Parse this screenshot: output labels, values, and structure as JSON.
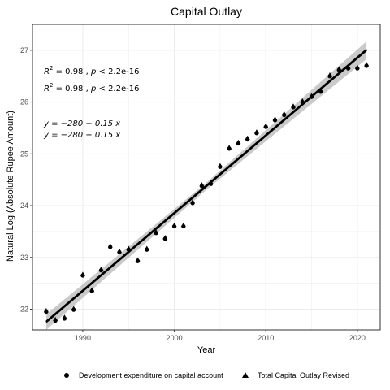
{
  "chart_data": {
    "type": "scatter",
    "title": "Capital Outlay",
    "xlabel": "Year",
    "ylabel": "Natural Log (Absolute Rupee Amount)",
    "xlim": [
      1984.5,
      2022.5
    ],
    "ylim": [
      21.6,
      27.5
    ],
    "x_ticks": [
      1990,
      2000,
      2010,
      2020
    ],
    "y_ticks": [
      22,
      23,
      24,
      25,
      26,
      27
    ],
    "grid": true,
    "legend_position": "bottom",
    "colors": {
      "points": "#000000",
      "fit_line": "#000000",
      "confidence_band": "#bdbdbd",
      "grid": "#ebebeb"
    },
    "annotations": [
      {
        "prefix": "R",
        "sup": "2",
        "rest": " = 0.98 , ",
        "italic": "p",
        "tail": " < 2.2e-16"
      },
      {
        "prefix": "R",
        "sup": "2",
        "rest": " = 0.98 , ",
        "italic": "p",
        "tail": " < 2.2e-16"
      },
      {
        "text": "y = −280 + 0.15 x"
      },
      {
        "text": "y = −280 + 0.15 x"
      }
    ],
    "series": [
      {
        "name": "Development  expenditure on  capital account",
        "marker": "circle",
        "x": [
          1986,
          1987,
          1988,
          1989,
          1990,
          1991,
          1992,
          1993,
          1994,
          1995,
          1996,
          1997,
          1998,
          1999,
          2000,
          2001,
          2002,
          2003,
          2004,
          2005,
          2006,
          2007,
          2008,
          2009,
          2010,
          2011,
          2012,
          2013,
          2014,
          2015,
          2016,
          2017,
          2018,
          2019,
          2020,
          2021
        ],
        "y": [
          21.95,
          21.78,
          21.82,
          21.99,
          22.65,
          22.35,
          22.75,
          23.2,
          23.1,
          23.15,
          22.93,
          23.15,
          23.47,
          23.36,
          23.6,
          23.6,
          24.05,
          24.38,
          24.42,
          24.75,
          25.1,
          25.2,
          25.28,
          25.4,
          25.52,
          25.65,
          25.75,
          25.9,
          26.0,
          26.1,
          26.2,
          26.5,
          26.62,
          26.65,
          26.65,
          26.7
        ]
      },
      {
        "name": "Total Capital Outlay Revised",
        "marker": "triangle",
        "x": [
          1986,
          1987,
          1988,
          1989,
          1990,
          1991,
          1992,
          1993,
          1994,
          1995,
          1996,
          1997,
          1998,
          1999,
          2000,
          2001,
          2002,
          2003,
          2004,
          2005,
          2006,
          2007,
          2008,
          2009,
          2010,
          2011,
          2012,
          2013,
          2014,
          2015,
          2016,
          2017,
          2018,
          2019,
          2020,
          2021
        ],
        "y": [
          21.97,
          21.8,
          21.84,
          22.01,
          22.67,
          22.37,
          22.77,
          23.22,
          23.12,
          23.17,
          22.95,
          23.17,
          23.49,
          23.38,
          23.62,
          23.62,
          24.07,
          24.4,
          24.44,
          24.77,
          25.12,
          25.22,
          25.3,
          25.42,
          25.54,
          25.67,
          25.77,
          25.92,
          26.02,
          26.12,
          26.22,
          26.52,
          26.64,
          26.67,
          26.67,
          26.72
        ]
      }
    ],
    "fit": {
      "intercept": -280,
      "slope": 0.15
    }
  }
}
